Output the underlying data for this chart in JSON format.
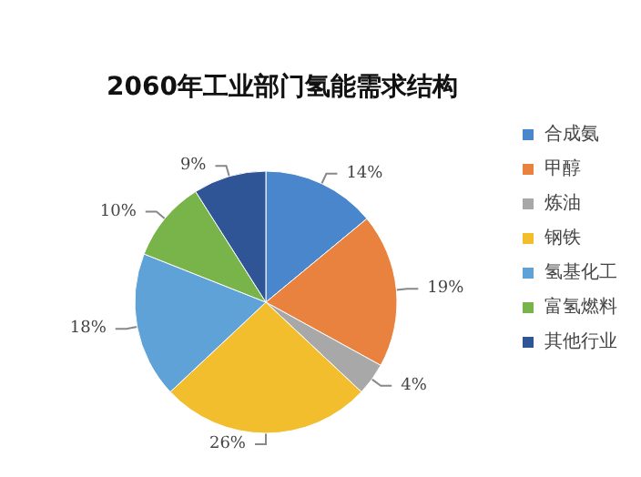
{
  "chart_data": {
    "type": "pie",
    "title": "2060年工业部门氢能需求结构",
    "categories": [
      "合成氨",
      "甲醇",
      "炼油",
      "钢铁",
      "氢基化工",
      "富氢燃料",
      "其他行业"
    ],
    "values": [
      14,
      19,
      4,
      26,
      18,
      10,
      9
    ],
    "value_labels": [
      "14%",
      "19%",
      "4%",
      "26%",
      "18%",
      "10%",
      "9%"
    ],
    "colors": [
      "#4a86cc",
      "#e8823e",
      "#a8a8a8",
      "#f2be2e",
      "#5ea2d8",
      "#78b44a",
      "#2f5597"
    ],
    "legend": "right"
  }
}
